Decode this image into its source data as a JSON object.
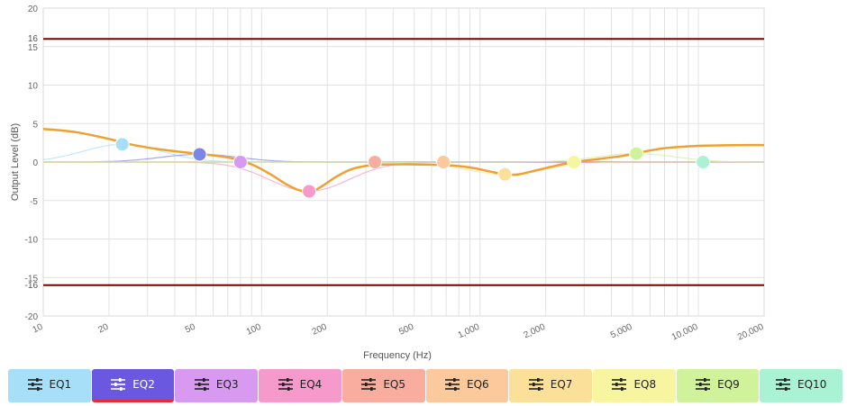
{
  "chart_data": {
    "type": "line",
    "xlabel": "Frequency (Hz)",
    "ylabel": "Output Level (dB)",
    "x_scale": "log",
    "xlim": [
      10,
      20000
    ],
    "ylim": [
      -20,
      20
    ],
    "grid": true,
    "y_ticks": [
      "20",
      "15",
      "10",
      "5",
      "0",
      "-5",
      "-10",
      "-15",
      "-20"
    ],
    "x_ticks": [
      {
        "value": 10,
        "label": "10"
      },
      {
        "value": 20,
        "label": "20"
      },
      {
        "value": 50,
        "label": "50"
      },
      {
        "value": 100,
        "label": "100"
      },
      {
        "value": 200,
        "label": "200"
      },
      {
        "value": 500,
        "label": "500"
      },
      {
        "value": 1000,
        "label": "1,000"
      },
      {
        "value": 2000,
        "label": "2,000"
      },
      {
        "value": 5000,
        "label": "5,000"
      },
      {
        "value": 10000,
        "label": "10,000"
      },
      {
        "value": 20000,
        "label": "20,000"
      }
    ],
    "limit_lines": [
      {
        "value": 16,
        "label": "16",
        "color": "#7a0000"
      },
      {
        "value": -16,
        "label": "-16",
        "color": "#7a0000"
      }
    ],
    "combined_curve": {
      "color": "#f0a030",
      "x": [
        10,
        14,
        20,
        25,
        35,
        50,
        70,
        90,
        110,
        130,
        150,
        170,
        190,
        220,
        260,
        320,
        400,
        500,
        700,
        900,
        1100,
        1300,
        1500,
        1800,
        2200,
        2700,
        3500,
        4500,
        5500,
        7000,
        10000,
        15000,
        20000
      ],
      "y": [
        4.3,
        3.9,
        3.0,
        2.3,
        1.6,
        1.1,
        0.6,
        -0.3,
        -1.6,
        -2.9,
        -3.7,
        -3.8,
        -3.1,
        -1.9,
        -0.9,
        -0.4,
        -0.3,
        -0.3,
        -0.4,
        -0.7,
        -1.2,
        -1.6,
        -1.6,
        -1.1,
        -0.5,
        0.0,
        0.4,
        0.8,
        1.3,
        1.8,
        2.1,
        2.2,
        2.2
      ]
    },
    "bands": [
      {
        "name": "EQ1",
        "freq": 23,
        "gain": 2.3,
        "color": "#a6dff7"
      },
      {
        "name": "EQ2",
        "freq": 52,
        "gain": 1.0,
        "color": "#7b86e8"
      },
      {
        "name": "EQ3",
        "freq": 80,
        "gain": 0.0,
        "color": "#d899f0"
      },
      {
        "name": "EQ4",
        "freq": 165,
        "gain": -3.8,
        "color": "#f59acb"
      },
      {
        "name": "EQ5",
        "freq": 330,
        "gain": 0.0,
        "color": "#f8ad9e"
      },
      {
        "name": "EQ6",
        "freq": 680,
        "gain": 0.0,
        "color": "#fbc99c"
      },
      {
        "name": "EQ7",
        "freq": 1300,
        "gain": -1.6,
        "color": "#fbe09a"
      },
      {
        "name": "EQ8",
        "freq": 2700,
        "gain": 0.0,
        "color": "#f7f59f"
      },
      {
        "name": "EQ9",
        "freq": 5200,
        "gain": 1.1,
        "color": "#d0f29b"
      },
      {
        "name": "EQ10",
        "freq": 10500,
        "gain": 0.0,
        "color": "#a9f2d4"
      }
    ]
  },
  "tabs": [
    {
      "label": "EQ1",
      "color": "#a6dff7"
    },
    {
      "label": "EQ2",
      "color": "#6a58e0",
      "active": true
    },
    {
      "label": "EQ3",
      "color": "#d899f0"
    },
    {
      "label": "EQ4",
      "color": "#f59acb"
    },
    {
      "label": "EQ5",
      "color": "#f8ad9e"
    },
    {
      "label": "EQ6",
      "color": "#fbc99c"
    },
    {
      "label": "EQ7",
      "color": "#fbe09a"
    },
    {
      "label": "EQ8",
      "color": "#f7f59f"
    },
    {
      "label": "EQ9",
      "color": "#d0f29b"
    },
    {
      "label": "EQ10",
      "color": "#a9f2d4"
    }
  ],
  "active_tab_indicator_color": "#e03030",
  "tab_icon": "sliders-icon"
}
